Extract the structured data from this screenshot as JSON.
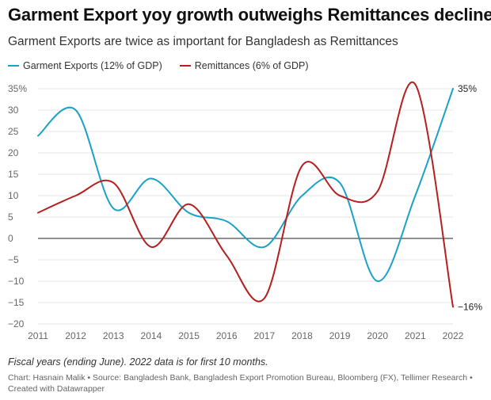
{
  "title": "Garment Export yoy growth outweighs Remittances decline",
  "subtitle": "Garment Exports are twice as important for Bangladesh as Remittances",
  "note": "Fiscal years (ending June). 2022 data is for first 10 months.",
  "credit": "Chart: Hasnain Malik • Source: Bangladesh Bank, Bangladesh Export Promotion Bureau, Bloomberg (FX), Tellimer Research • Created with Datawrapper",
  "chart_data": {
    "type": "line",
    "title": "Garment Export yoy growth outweighs Remittances decline",
    "subtitle": "Garment Exports are twice as important for Bangladesh as Remittances",
    "x": [
      2011,
      2012,
      2013,
      2014,
      2015,
      2016,
      2017,
      2018,
      2019,
      2020,
      2021,
      2022
    ],
    "x_tick_labels": [
      "2011",
      "2012",
      "2013",
      "2014",
      "2015",
      "2016",
      "2017",
      "2018",
      "2019",
      "2020",
      "2021",
      "2022"
    ],
    "ylim": [
      -20,
      35
    ],
    "y_ticks": [
      35,
      30,
      25,
      20,
      15,
      10,
      5,
      0,
      -5,
      -10,
      -15,
      -20
    ],
    "y_tick_labels": [
      "35%",
      "30",
      "25",
      "20",
      "15",
      "10",
      "5",
      "0",
      "−5",
      "−10",
      "−15",
      "−20"
    ],
    "grid": true,
    "legend_position": "top-left",
    "series": [
      {
        "name": "Garment Exports (12% of GDP)",
        "color": "#1aa1c7",
        "values": [
          24,
          30,
          7,
          14,
          6,
          4,
          -2,
          10,
          13,
          -10,
          10,
          35
        ],
        "end_label": "35%"
      },
      {
        "name": "Remittances (6% of GDP)",
        "color": "#b51f1f",
        "values": [
          6,
          10,
          13,
          -2,
          8,
          -4,
          -14,
          17,
          10,
          11,
          36,
          -16
        ],
        "end_label": "−16%"
      }
    ]
  }
}
